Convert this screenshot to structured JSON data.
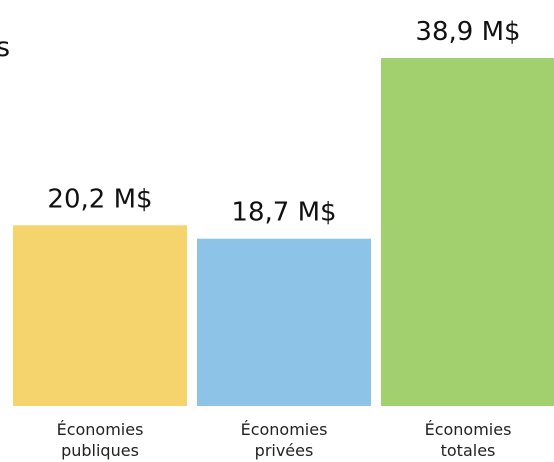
{
  "page": {
    "edge_fragment": "s"
  },
  "chart_data": {
    "type": "bar",
    "title": "",
    "xlabel": "",
    "ylabel": "",
    "categories": [
      {
        "line1": "Économies",
        "line2": "publiques"
      },
      {
        "line1": "Économies",
        "line2": "privées"
      },
      {
        "line1": "Économies",
        "line2": "totales"
      }
    ],
    "values": [
      20.2,
      18.7,
      38.9
    ],
    "value_labels": [
      "20,2 M$",
      "18,7 M$",
      "38,9 M$"
    ],
    "colors": [
      "#F5D46D",
      "#8DC3E6",
      "#A2D06F"
    ],
    "ylim": [
      0,
      38.9
    ],
    "grid": false,
    "legend": "none"
  }
}
